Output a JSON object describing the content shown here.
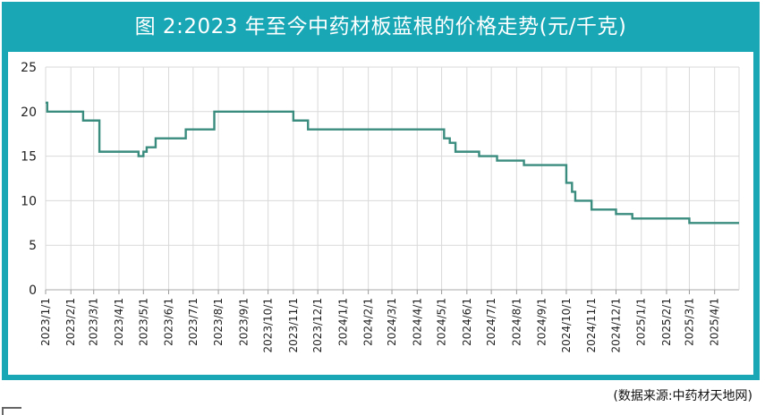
{
  "title": "图 2:2023 年至今中药材板蓝根的价格走势(元/千克)",
  "source": "(数据来源:中药材天地网)",
  "colors": {
    "frame": "#1aa7b5",
    "line": "#3a8c7f",
    "grid": "#d9d9d9"
  },
  "chart_data": {
    "type": "line",
    "title": "图 2:2023 年至今中药材板蓝根的价格走势(元/千克)",
    "xlabel": "",
    "ylabel": "",
    "ylim": [
      0,
      25
    ],
    "yticks": [
      "0",
      "5",
      "10",
      "15",
      "20",
      "25"
    ],
    "grid": true,
    "legend": "none",
    "xticks": [
      "2023/1/1",
      "2023/2/1",
      "2023/3/1",
      "2023/4/1",
      "2023/5/1",
      "2023/6/1",
      "2023/7/1",
      "2023/8/1",
      "2023/9/1",
      "2023/10/1",
      "2023/11/1",
      "2023/12/1",
      "2024/1/1",
      "2024/2/1",
      "2024/3/1",
      "2024/4/1",
      "2024/5/1",
      "2024/6/1",
      "2024/7/1",
      "2024/8/1",
      "2024/9/1",
      "2024/10/1",
      "2024/11/1",
      "2024/12/1",
      "2025/1/1",
      "2025/2/1",
      "2025/3/1",
      "2025/4/1"
    ],
    "series": [
      {
        "name": "",
        "step": true,
        "x": [
          "2023/1/1",
          "2023/1/3",
          "2023/2/1",
          "2023/2/16",
          "2023/3/8",
          "2023/4/25",
          "2023/5/1",
          "2023/5/5",
          "2023/5/10",
          "2023/5/16",
          "2023/6/13",
          "2023/6/22",
          "2023/6/30",
          "2023/7/27",
          "2023/11/1",
          "2023/11/19",
          "2024/5/4",
          "2024/5/11",
          "2024/5/18",
          "2024/6/16",
          "2024/7/8",
          "2024/8/10",
          "2024/10/1",
          "2024/10/8",
          "2024/10/12",
          "2024/10/15",
          "2024/11/1",
          "2024/12/1",
          "2024/12/21",
          "2025/3/1",
          "2025/5/1"
        ],
        "values": [
          21,
          20,
          20,
          19,
          15.5,
          15,
          15.5,
          16,
          16,
          17,
          17,
          18,
          18,
          20,
          19,
          18,
          17,
          16.5,
          15.5,
          15,
          14.5,
          14,
          12,
          11,
          10,
          10,
          9,
          8.5,
          8,
          7.5,
          7.5
        ]
      }
    ]
  }
}
